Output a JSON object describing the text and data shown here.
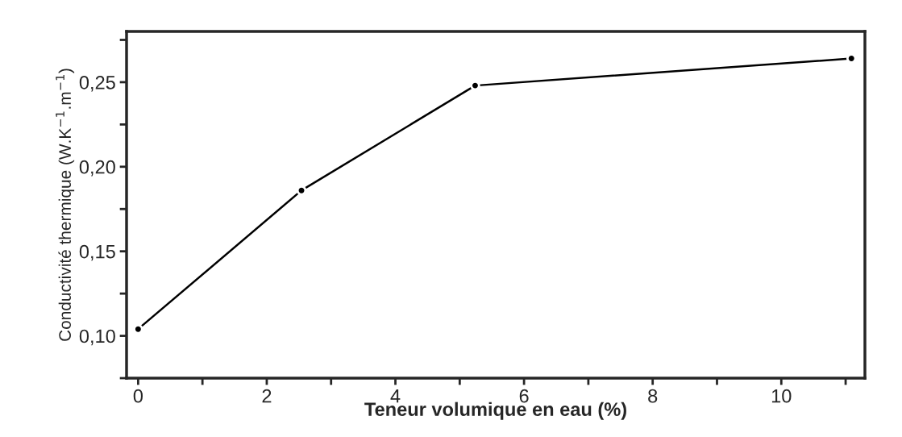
{
  "chart_data": {
    "type": "line",
    "xlabel": "Teneur volumique en eau (%)",
    "ylabel": "Conductivité thermique (W.K$^{−1}$.m$^{−1}$)",
    "x": [
      0,
      2.54,
      5.24,
      11.09
    ],
    "series": [
      {
        "color": "#000000",
        "values": [
          0.104,
          0.186,
          0.248,
          0.264
        ]
      }
    ],
    "marker": "circle",
    "line_style": "solid",
    "grid": false,
    "legend": false,
    "xlim": [
      -0.18,
      11.3
    ],
    "ylim": [
      0.075,
      0.28
    ],
    "xticks": [
      0,
      {
        "value": 1,
        "label": null
      },
      2,
      {
        "value": 3,
        "label": null
      },
      4,
      {
        "value": 5,
        "label": null
      },
      6,
      {
        "value": 7,
        "label": null
      },
      8,
      {
        "value": 9,
        "label": null
      },
      10,
      {
        "value": 11,
        "label": null
      }
    ],
    "yticks": [
      {
        "value": 0.075,
        "label": null
      },
      {
        "value": 0.1,
        "label": "0,10"
      },
      {
        "value": 0.125,
        "label": null
      },
      {
        "value": 0.15,
        "label": "0,15"
      },
      {
        "value": 0.175,
        "label": null
      },
      {
        "value": 0.2,
        "label": "0,20"
      },
      {
        "value": 0.225,
        "label": null
      },
      {
        "value": 0.25,
        "label": "0,25"
      },
      {
        "value": 0.275,
        "label": null
      }
    ]
  }
}
